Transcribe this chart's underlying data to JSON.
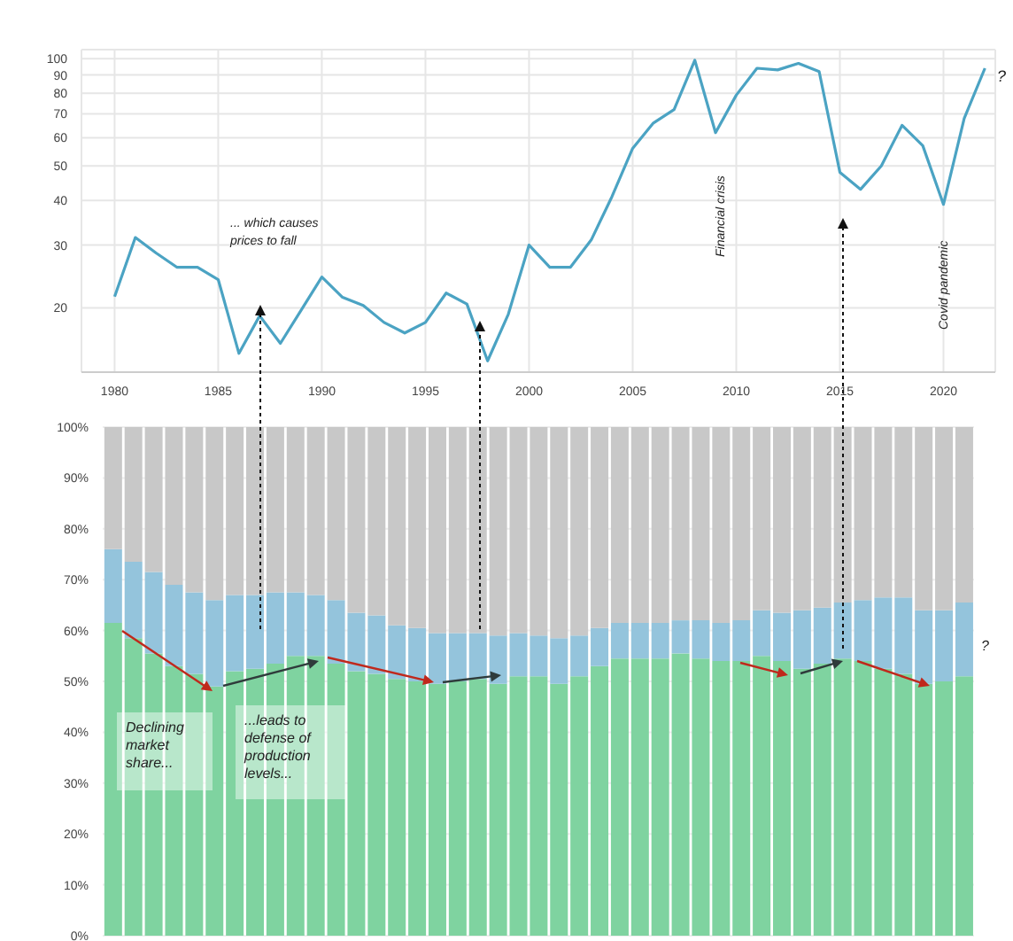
{
  "chart_data": [
    {
      "type": "line",
      "x": [
        1980,
        1981,
        1982,
        1983,
        1984,
        1985,
        1986,
        1987,
        1988,
        1989,
        1990,
        1991,
        1992,
        1993,
        1994,
        1995,
        1996,
        1997,
        1998,
        1999,
        2000,
        2001,
        2002,
        2003,
        2004,
        2005,
        2006,
        2007,
        2008,
        2009,
        2010,
        2011,
        2012,
        2013,
        2014,
        2015,
        2016,
        2017,
        2018,
        2019,
        2020,
        2021,
        2022
      ],
      "series": [
        {
          "color": "#4ba3c3",
          "values": [
            21.5,
            31.5,
            28.5,
            26,
            26,
            24,
            14.9,
            19,
            15.9,
            19.7,
            24.4,
            21.4,
            20.3,
            18.2,
            17,
            18.2,
            22,
            20.5,
            14.2,
            19.2,
            30,
            26,
            26,
            31,
            41,
            56,
            66,
            72,
            99,
            62,
            79,
            94,
            93,
            97,
            92,
            48,
            43,
            50,
            65,
            57,
            39,
            68,
            94
          ]
        }
      ],
      "xlim": [
        1978.4,
        2022.5
      ],
      "xticks": [
        1980,
        1985,
        1990,
        1995,
        2000,
        2005,
        2010,
        2015,
        2020
      ],
      "ylim": [
        13.2,
        106
      ],
      "yticks": [
        20,
        30,
        40,
        50,
        60,
        70,
        80,
        90,
        100
      ],
      "log": "y",
      "grid": true,
      "marker": "none",
      "line_style": "solid",
      "annotations": [
        "... which causes prices to fall",
        "Financial crisis",
        "Covid pandemic",
        "?"
      ]
    },
    {
      "type": "bar",
      "stacked": true,
      "categories": [
        null,
        null,
        null,
        null,
        null,
        null,
        null,
        null,
        null,
        null,
        null,
        null,
        null,
        null,
        null,
        null,
        null,
        null,
        null,
        null,
        null,
        null,
        null,
        null,
        null,
        null,
        null,
        null,
        null,
        null,
        null,
        null,
        null,
        null,
        null,
        null,
        null,
        null,
        null,
        null,
        null,
        null,
        null
      ],
      "series": [
        {
          "color": "#7fd3a0",
          "values": [
            61.5,
            58.5,
            55.5,
            53,
            51.5,
            49,
            52,
            52.5,
            53.5,
            55,
            55,
            53.5,
            52,
            51.5,
            50.5,
            50,
            49.5,
            50,
            50.5,
            49.5,
            51,
            51,
            49.5,
            51,
            53,
            54.5,
            54.5,
            54.5,
            55.5,
            54.5,
            54,
            54,
            55,
            54,
            52.5,
            53.5,
            54.5,
            54,
            52.5,
            51.5,
            49.5,
            50,
            51
          ]
        },
        {
          "color": "#94c4dc",
          "values": [
            14.5,
            15,
            16,
            16,
            16,
            17,
            15,
            14.5,
            14,
            12.5,
            12,
            12.5,
            11.5,
            11.5,
            10.5,
            10.5,
            10,
            9.5,
            9,
            9.5,
            8.5,
            8,
            9,
            8,
            7.5,
            7,
            7,
            7,
            6.5,
            7.5,
            7.5,
            8,
            9,
            9.5,
            11.5,
            11,
            11,
            12,
            14,
            15,
            14.5,
            14,
            14.5
          ]
        },
        {
          "color": "#c8c8c8",
          "values": [
            24,
            26.5,
            28.5,
            31,
            32.5,
            34,
            33,
            33,
            32.5,
            32.5,
            33,
            34,
            36.5,
            37,
            39,
            39.5,
            40.5,
            40.5,
            40.5,
            41,
            40.5,
            41,
            41.5,
            41,
            39.5,
            38.5,
            38.5,
            38.5,
            38,
            38,
            38.5,
            38,
            36,
            36.5,
            36,
            35.5,
            34.5,
            34,
            33.5,
            33.5,
            36,
            36,
            34.5
          ]
        }
      ],
      "ylim": [
        0,
        100
      ],
      "yticks": [
        {
          "value": 0,
          "label": "0%"
        },
        {
          "value": 10,
          "label": "10%"
        },
        {
          "value": 20,
          "label": "20%"
        },
        {
          "value": 30,
          "label": "30%"
        },
        {
          "value": 40,
          "label": "40%"
        },
        {
          "value": 50,
          "label": "50%"
        },
        {
          "value": 60,
          "label": "60%"
        },
        {
          "value": 70,
          "label": "70%"
        },
        {
          "value": 80,
          "label": "80%"
        },
        {
          "value": 90,
          "label": "90%"
        },
        {
          "value": 100,
          "label": "100%"
        }
      ],
      "tick_labels": "y",
      "grid": "y",
      "annotations": [
        "Declining market share...",
        "...leads to defense of production levels...",
        "?"
      ]
    }
  ]
}
